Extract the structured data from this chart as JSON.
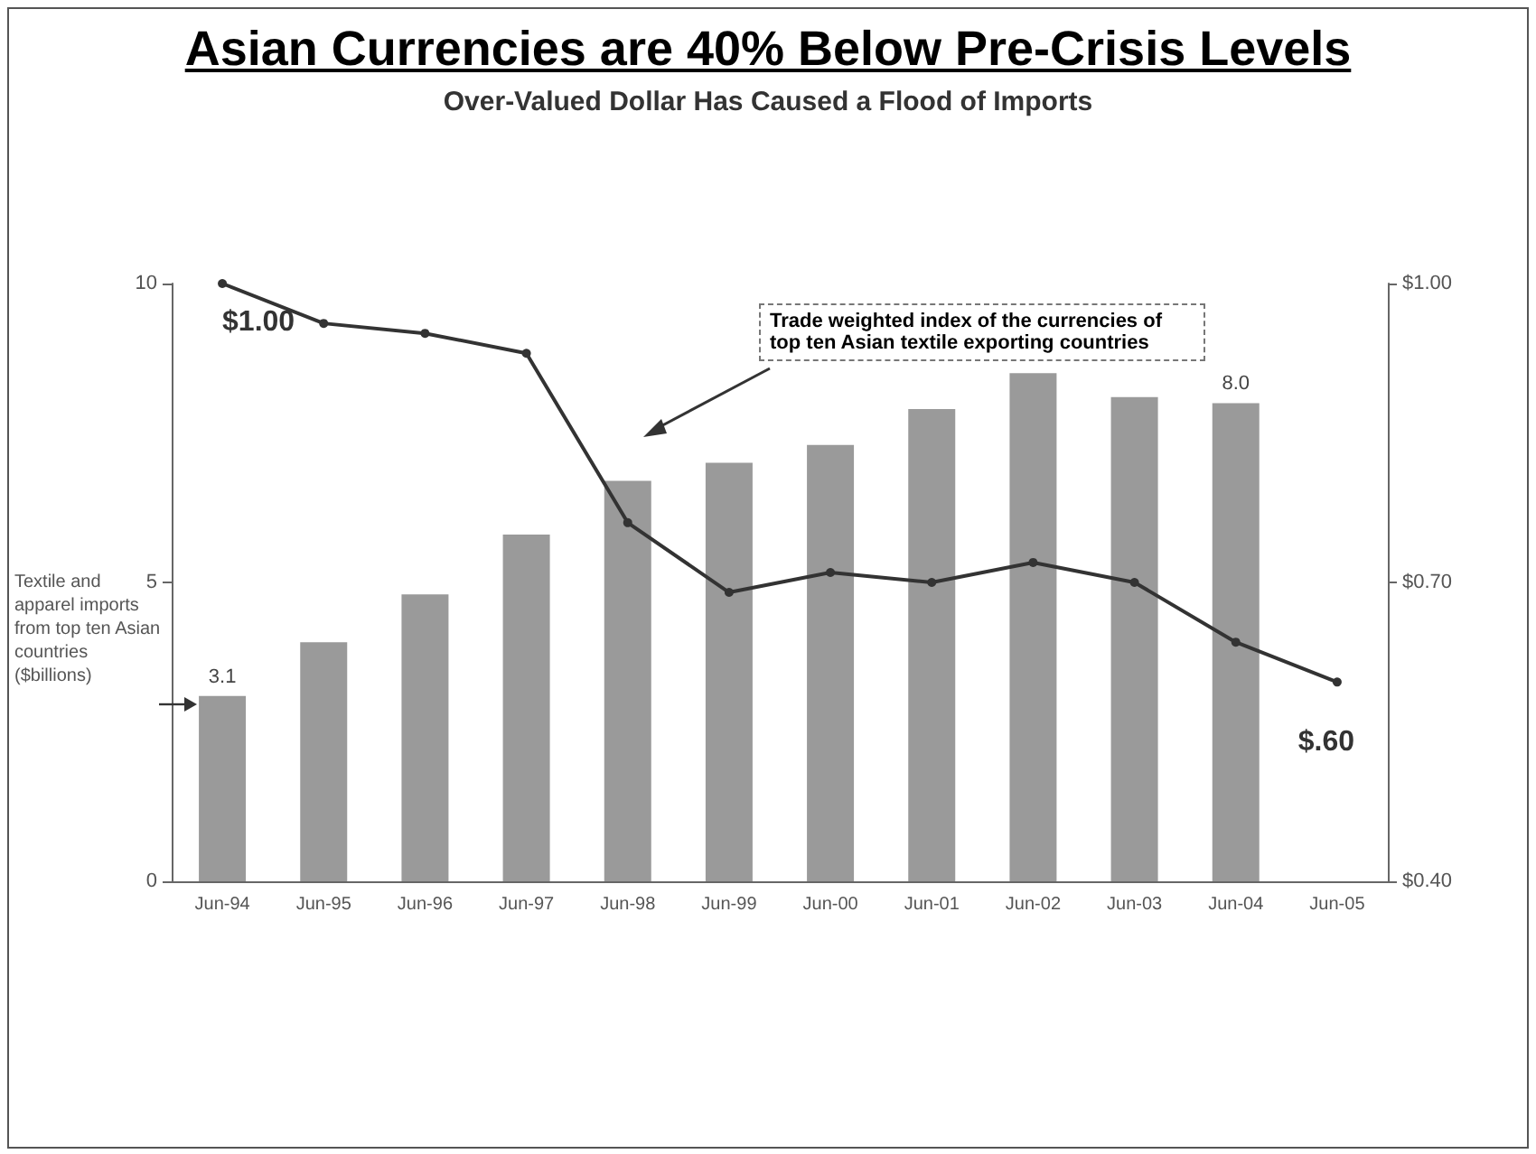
{
  "chart_data": {
    "type": "bar",
    "title": "Asian Currencies are 40% Below Pre-Crisis Levels",
    "subtitle": "Over-Valued Dollar Has Caused a Flood of Imports",
    "ylabel": "Textile and apparel imports from top ten Asian countries ($billions)",
    "categories": [
      "Jun-94",
      "Jun-95",
      "Jun-96",
      "Jun-97",
      "Jun-98",
      "Jun-99",
      "Jun-00",
      "Jun-01",
      "Jun-02",
      "Jun-03",
      "Jun-04",
      "Jun-05"
    ],
    "series": [
      {
        "color": "#9a9a9a",
        "values": [
          3.1,
          4.0,
          4.8,
          5.8,
          6.7,
          7.0,
          7.3,
          7.9,
          8.5,
          8.1,
          8.0,
          null
        ],
        "value_labels": [
          "3.1",
          null,
          null,
          null,
          null,
          null,
          null,
          null,
          null,
          null,
          "8.0",
          null
        ]
      },
      {
        "type": "line",
        "axis": "y2",
        "color": "#333333",
        "values": [
          1.0,
          0.96,
          0.95,
          0.93,
          0.76,
          0.69,
          0.71,
          0.7,
          0.72,
          0.7,
          0.64,
          0.6
        ],
        "value_labels": [
          "$1.00",
          null,
          null,
          null,
          null,
          null,
          null,
          null,
          null,
          null,
          null,
          "$.60"
        ]
      }
    ],
    "ylim": [
      0,
      10
    ],
    "yticks": [
      0,
      5,
      10
    ],
    "y2lim": [
      0.4,
      1.0
    ],
    "y2ticks": [
      {
        "value": 0.4,
        "label": "$0.40"
      },
      {
        "value": 0.7,
        "label": "$0.70"
      },
      {
        "value": 1.0,
        "label": "$1.00"
      }
    ],
    "annotations": [
      "Trade weighted index of the currencies of top ten Asian textile exporting countries"
    ],
    "marker": "circle",
    "line_style": "solid",
    "grid": false
  }
}
